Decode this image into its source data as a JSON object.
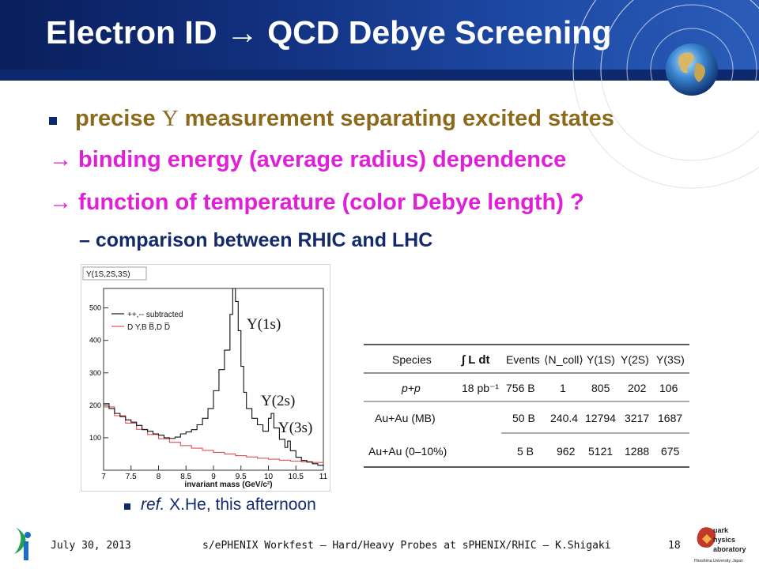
{
  "slide": {
    "title": "Electron ID → QCD Debye Screening",
    "bullets": [
      {
        "prefix": "precise ",
        "symbol": "Υ",
        "suffix": " measurement separating excited states"
      },
      {
        "text": "→ binding energy (average radius) dependence"
      },
      {
        "text": "→ function of temperature (color Debye length) ?"
      },
      {
        "text": "–  comparison between RHIC and LHC"
      }
    ],
    "ref": {
      "italic": "ref.",
      "rest": " X.He, this afternoon"
    }
  },
  "plot": {
    "title": "Υ(1S,2S,3S)",
    "legend": [
      "++,-- subtracted",
      "D Y,B B̅,D D̅"
    ],
    "xlabel": "invariant mass (GeV/c²)",
    "peak_labels": [
      "Υ(1s)",
      "Υ(2s)",
      "Υ(3s)"
    ]
  },
  "table": {
    "headers": [
      "Species",
      "∫ L dt",
      "Events",
      "⟨N_coll⟩",
      "Υ(1S)",
      "Υ(2S)",
      "Υ(3S)"
    ],
    "rows": [
      [
        "p+p",
        "18 pb⁻¹",
        "756 B",
        "1",
        "805",
        "202",
        "106"
      ],
      [
        "Au+Au (MB)",
        "",
        "50 B",
        "240.4",
        "12794",
        "3217",
        "1687"
      ],
      [
        "Au+Au (0–10%)",
        "",
        "5 B",
        "962",
        "5121",
        "1288",
        "675"
      ]
    ]
  },
  "footer": {
    "date": "July 30, 2013",
    "center": "s/ePHENIX Workfest – Hard/Heavy Probes at sPHENIX/RHIC – K.Shigaki",
    "page": "18",
    "logo_right_text": [
      "uark",
      "hysics",
      "aboratory",
      "Hiroshima University, Japan"
    ]
  },
  "colors": {
    "header": "#12307e",
    "bullet1": "#8c6a1a",
    "arrows": "#e020d6",
    "sub": "#142a6e"
  },
  "chart_data": {
    "type": "line",
    "xlim": [
      7,
      11
    ],
    "ylim": [
      0,
      560
    ],
    "xticks": [
      7,
      7.5,
      8,
      8.5,
      9,
      9.5,
      10,
      10.5,
      11
    ],
    "yticks": [
      100,
      200,
      300,
      400,
      500
    ],
    "xlabel": "invariant mass (GeV/c²)",
    "series": [
      {
        "name": "++,-- subtracted",
        "color": "#111111",
        "x": [
          7.0,
          7.1,
          7.2,
          7.3,
          7.4,
          7.5,
          7.6,
          7.7,
          7.8,
          7.9,
          8.0,
          8.1,
          8.2,
          8.3,
          8.4,
          8.5,
          8.6,
          8.7,
          8.8,
          8.9,
          9.0,
          9.1,
          9.2,
          9.3,
          9.35,
          9.4,
          9.45,
          9.5,
          9.55,
          9.6,
          9.7,
          9.8,
          9.9,
          10.0,
          10.05,
          10.1,
          10.2,
          10.3,
          10.35,
          10.4,
          10.5,
          10.6,
          10.7,
          10.8,
          10.9,
          11.0
        ],
        "y": [
          205,
          190,
          175,
          165,
          155,
          148,
          138,
          125,
          120,
          112,
          108,
          100,
          98,
          102,
          112,
          118,
          125,
          140,
          160,
          190,
          245,
          310,
          370,
          480,
          560,
          520,
          430,
          320,
          240,
          190,
          160,
          140,
          120,
          160,
          175,
          130,
          95,
          70,
          90,
          60,
          40,
          30,
          25,
          20,
          15,
          12
        ]
      },
      {
        "name": "D Y,B B̅,D D̅",
        "color": "#e05050",
        "x": [
          7.0,
          7.2,
          7.4,
          7.6,
          7.8,
          8.0,
          8.2,
          8.4,
          8.6,
          8.8,
          9.0,
          9.2,
          9.4,
          9.6,
          9.8,
          10.0,
          10.2,
          10.4,
          10.6,
          10.8,
          11.0
        ],
        "y": [
          195,
          168,
          145,
          126,
          110,
          97,
          86,
          76,
          68,
          61,
          55,
          50,
          45,
          41,
          37,
          34,
          31,
          28,
          26,
          24,
          22
        ]
      }
    ]
  }
}
